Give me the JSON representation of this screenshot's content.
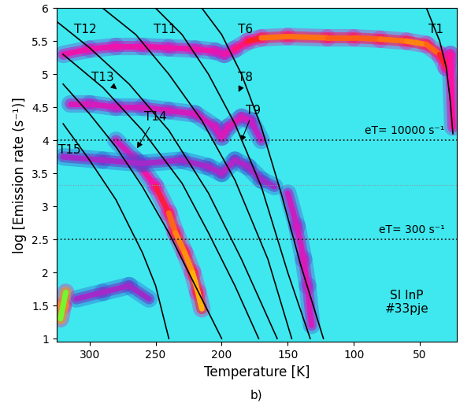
{
  "chart_data": {
    "type": "spectral_map",
    "xlabel": "Temperature [K]",
    "ylabel": "log [Emission rate (s⁻¹)]",
    "caption": "b)",
    "xlim": [
      325,
      22
    ],
    "xticks": [
      300,
      250,
      200,
      150,
      100,
      50
    ],
    "ylim": [
      0.95,
      6
    ],
    "yticks": [
      1,
      1.5,
      2,
      2.5,
      3,
      3.5,
      4,
      4.5,
      5,
      5.5,
      6
    ],
    "intensity_range": [
      0,
      1
    ],
    "peaks": [
      {
        "x": [
          320,
          300,
          280,
          260,
          240,
          220,
          205,
          198,
          190,
          180,
          170,
          150,
          120,
          100,
          80,
          60,
          45,
          35,
          30,
          27,
          25
        ],
        "y": [
          5.3,
          5.38,
          5.42,
          5.42,
          5.4,
          5.38,
          5.35,
          5.3,
          5.38,
          5.5,
          5.55,
          5.57,
          5.55,
          5.55,
          5.53,
          5.5,
          5.45,
          5.3,
          5.1,
          5.3,
          4.2
        ],
        "intensity": [
          0.45,
          0.45,
          0.45,
          0.45,
          0.45,
          0.45,
          0.45,
          0.4,
          0.5,
          0.6,
          0.72,
          0.75,
          0.72,
          0.72,
          0.72,
          0.75,
          0.75,
          0.7,
          0.6,
          0.55,
          0.45
        ]
      },
      {
        "x": [
          315,
          300,
          280,
          260,
          240,
          220,
          205,
          200,
          195,
          185,
          178,
          170
        ],
        "y": [
          4.55,
          4.55,
          4.5,
          4.5,
          4.45,
          4.4,
          4.2,
          4.05,
          4.2,
          4.35,
          4.3,
          4.0
        ],
        "intensity": [
          0.4,
          0.4,
          0.38,
          0.38,
          0.38,
          0.38,
          0.38,
          0.4,
          0.4,
          0.4,
          0.38,
          0.3
        ]
      },
      {
        "x": [
          280,
          265,
          250,
          240,
          235,
          228,
          222,
          218,
          215
        ],
        "y": [
          4.0,
          3.7,
          3.3,
          2.9,
          2.6,
          2.3,
          2.0,
          1.7,
          1.45
        ],
        "intensity": [
          0.35,
          0.4,
          0.55,
          0.7,
          0.75,
          0.75,
          0.78,
          0.8,
          0.78
        ]
      },
      {
        "x": [
          320,
          290,
          260,
          230,
          210,
          200,
          190,
          180,
          170,
          160
        ],
        "y": [
          3.75,
          3.7,
          3.65,
          3.7,
          3.6,
          3.5,
          3.7,
          3.6,
          3.4,
          3.3
        ],
        "intensity": [
          0.3,
          0.3,
          0.3,
          0.3,
          0.3,
          0.32,
          0.32,
          0.3,
          0.3,
          0.28
        ]
      },
      {
        "x": [
          150,
          143,
          138,
          135,
          132
        ],
        "y": [
          3.2,
          2.7,
          2.2,
          1.8,
          1.2
        ],
        "intensity": [
          0.35,
          0.38,
          0.4,
          0.4,
          0.38
        ]
      },
      {
        "x": [
          310,
          290,
          270,
          255
        ],
        "y": [
          1.6,
          1.7,
          1.8,
          1.6
        ],
        "intensity": [
          0.3,
          0.3,
          0.3,
          0.28
        ]
      },
      {
        "x": [
          322,
          320,
          318
        ],
        "y": [
          1.3,
          1.5,
          1.7
        ],
        "intensity": [
          0.9,
          1.0,
          0.9
        ]
      }
    ],
    "series": [
      {
        "color": "#000000",
        "x": [
          320,
          300,
          280,
          260,
          250,
          240
        ],
        "y": [
          4.25,
          3.7,
          3.1,
          2.3,
          1.8,
          1.0
        ]
      },
      {
        "color": "#000000",
        "x": [
          320,
          300,
          280,
          260,
          240,
          220,
          200
        ],
        "y": [
          4.85,
          4.4,
          3.9,
          3.3,
          2.6,
          1.8,
          1.0
        ]
      },
      {
        "color": "#000000",
        "x": [
          320,
          290,
          260,
          230,
          210,
          190,
          172
        ],
        "y": [
          5.3,
          4.8,
          4.15,
          3.35,
          2.6,
          1.8,
          1.0
        ]
      },
      {
        "color": "#000000",
        "x": [
          325,
          300,
          270,
          240,
          210,
          185,
          158
        ],
        "y": [
          5.8,
          5.4,
          4.85,
          4.15,
          3.2,
          2.2,
          1.0
        ]
      },
      {
        "color": "#000000",
        "x": [
          290,
          265,
          240,
          215,
          190,
          165,
          147
        ],
        "y": [
          6.0,
          5.6,
          5.0,
          4.3,
          3.4,
          2.2,
          1.0
        ]
      },
      {
        "color": "#000000",
        "x": [
          250,
          230,
          210,
          190,
          170,
          150,
          133
        ],
        "y": [
          6.0,
          5.6,
          5.0,
          4.25,
          3.3,
          2.0,
          1.0
        ]
      },
      {
        "color": "#000000",
        "x": [
          215,
          200,
          185,
          170,
          155,
          140,
          123
        ],
        "y": [
          6.0,
          5.6,
          5.0,
          4.2,
          3.2,
          2.1,
          1.0
        ]
      },
      {
        "color": "#000000",
        "x": [
          45,
          35,
          30,
          27,
          25
        ],
        "y": [
          6.0,
          5.5,
          5.1,
          4.6,
          4.1
        ]
      }
    ],
    "hlines": [
      {
        "y": 4,
        "label": "eT= 10000 s⁻¹",
        "color": "#222222",
        "line_style": "dotted"
      },
      {
        "y": 3.32,
        "color": "#8899aa",
        "line_style": "dotted"
      },
      {
        "y": 2.5,
        "label": "eT= 300 s⁻¹",
        "color": "#222222",
        "line_style": "dotted"
      }
    ],
    "annotations": [
      {
        "text": "T12",
        "x": 303,
        "y": 5.68
      },
      {
        "text": "T11",
        "x": 243,
        "y": 5.68
      },
      {
        "text": "T6",
        "x": 182,
        "y": 5.68
      },
      {
        "text": "T1",
        "x": 38,
        "y": 5.68
      },
      {
        "text": "T13",
        "x": 290,
        "y": 4.95,
        "arrow_to": [
          278,
          4.75
        ]
      },
      {
        "text": "T8",
        "x": 182,
        "y": 4.95,
        "arrow_to": [
          188,
          4.7
        ]
      },
      {
        "text": "T14",
        "x": 250,
        "y": 4.35,
        "arrow_to": [
          265,
          3.85
        ]
      },
      {
        "text": "T9",
        "x": 176,
        "y": 4.45,
        "arrow_to": [
          186,
          3.95
        ]
      },
      {
        "text": "T15",
        "x": 315,
        "y": 3.85
      },
      {
        "text": "SI InP\n#33pje",
        "x": 60,
        "y": 1.55
      }
    ]
  }
}
